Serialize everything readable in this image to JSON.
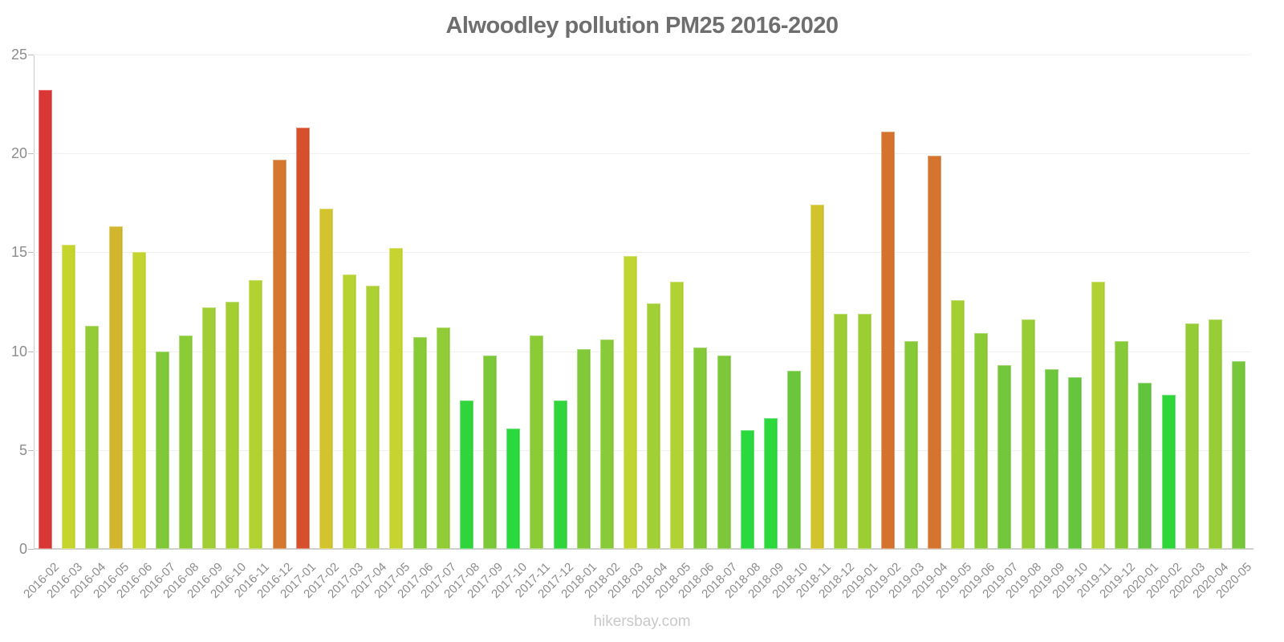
{
  "title": "Alwoodley pollution PM25 2016-2020",
  "watermark": "hikersbay.com",
  "axis": {
    "grid_color": "#f0f0f0",
    "axis_color": "#cccccc",
    "label_color": "#8c8c8c"
  },
  "chart_data": {
    "type": "bar",
    "title": "Alwoodley pollution PM25 2016-2020",
    "xlabel": "",
    "ylabel": "",
    "ylim": [
      0,
      25
    ],
    "yticks": [
      0,
      5,
      10,
      15,
      20,
      25
    ],
    "grid": true,
    "legend": "none",
    "color_scale": "green (low) through yellow and orange to red (high)",
    "categories": [
      "2016-02",
      "2016-03",
      "2016-04",
      "2016-05",
      "2016-06",
      "2016-07",
      "2016-08",
      "2016-09",
      "2016-10",
      "2016-11",
      "2016-12",
      "2017-01",
      "2017-02",
      "2017-03",
      "2017-04",
      "2017-05",
      "2017-06",
      "2017-07",
      "2017-08",
      "2017-09",
      "2017-10",
      "2017-11",
      "2017-12",
      "2018-01",
      "2018-02",
      "2018-03",
      "2018-04",
      "2018-05",
      "2018-06",
      "2018-07",
      "2018-08",
      "2018-09",
      "2018-10",
      "2018-11",
      "2018-12",
      "2019-01",
      "2019-02",
      "2019-03",
      "2019-04",
      "2019-05",
      "2019-06",
      "2019-07",
      "2019-08",
      "2019-09",
      "2019-10",
      "2019-11",
      "2019-12",
      "2020-01",
      "2020-02",
      "2020-03",
      "2020-04",
      "2020-05"
    ],
    "values": [
      23.2,
      15.4,
      11.3,
      16.3,
      15.0,
      10.0,
      10.8,
      12.2,
      12.5,
      13.6,
      19.7,
      21.3,
      17.2,
      13.9,
      13.3,
      15.2,
      10.7,
      11.2,
      7.5,
      9.8,
      6.1,
      10.8,
      7.5,
      10.1,
      10.6,
      14.8,
      12.4,
      13.5,
      10.2,
      9.8,
      6.0,
      6.6,
      9.0,
      17.4,
      11.9,
      11.9,
      21.1,
      10.5,
      19.9,
      12.6,
      10.9,
      9.3,
      11.6,
      9.1,
      8.7,
      13.5,
      10.5,
      8.4,
      7.8,
      11.4,
      11.6,
      9.5
    ],
    "colors": [
      "#d93636",
      "#c6d42e",
      "#93cc35",
      "#d1b62e",
      "#c4d42f",
      "#7fc938",
      "#8bcb36",
      "#a0ce34",
      "#a3cf33",
      "#b2d232",
      "#d5782e",
      "#d7502e",
      "#d2c42d",
      "#b7d331",
      "#add132",
      "#c5d42f",
      "#89cb37",
      "#91cc36",
      "#2fd53a",
      "#7cc839",
      "#2ad93d",
      "#8bcb36",
      "#2fd53a",
      "#81c938",
      "#88ca37",
      "#c1d530",
      "#a2cf33",
      "#b1d232",
      "#83c938",
      "#7cc839",
      "#29d93d",
      "#2cd83c",
      "#6cc63b",
      "#d1c32c",
      "#9cce34",
      "#9cce34",
      "#d4722e",
      "#87ca37",
      "#d4742e",
      "#a4cf33",
      "#8ccb36",
      "#72c73a",
      "#97cd35",
      "#6dc63b",
      "#65c53c",
      "#b1d232",
      "#87ca37",
      "#60c43c",
      "#2fd63a",
      "#94cc35",
      "#97cd35",
      "#76c73a"
    ]
  }
}
